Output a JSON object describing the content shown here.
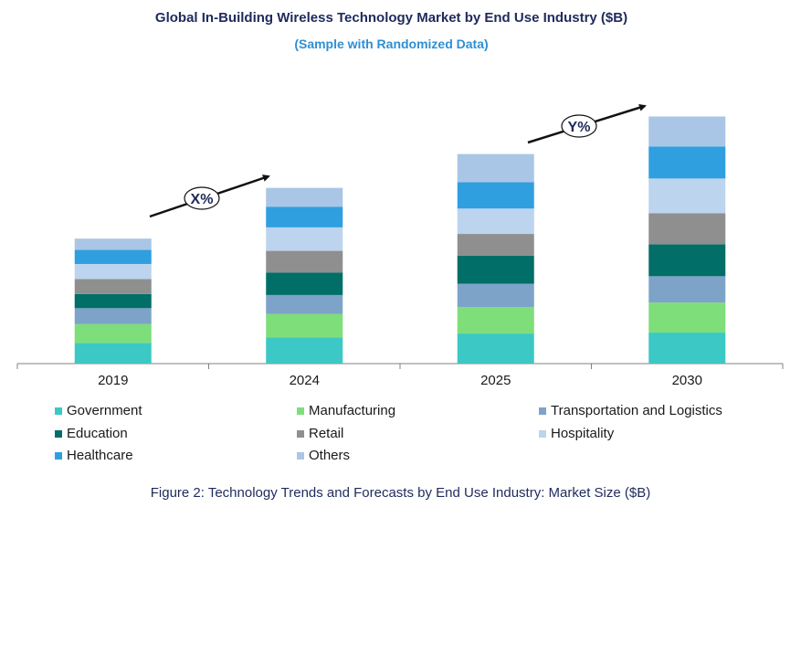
{
  "chart_data": {
    "type": "bar",
    "stacked": true,
    "title": "Global In-Building Wireless Technology Market by End Use Industry ($B)",
    "subtitle": "(Sample with Randomized Data)",
    "categories": [
      "2019",
      "2024",
      "2025",
      "2030"
    ],
    "series": [
      {
        "name": "Government",
        "color": "#3cc8c4",
        "values": [
          2.2,
          2.8,
          3.2,
          3.3
        ]
      },
      {
        "name": "Manufacturing",
        "color": "#7ede7a",
        "values": [
          2.0,
          2.5,
          2.8,
          3.2
        ]
      },
      {
        "name": "Transportation and Logistics",
        "color": "#7ea3c8",
        "values": [
          1.7,
          2.0,
          2.5,
          2.8
        ]
      },
      {
        "name": "Education",
        "color": "#016e67",
        "values": [
          1.5,
          2.4,
          3.0,
          3.4
        ]
      },
      {
        "name": "Retail",
        "color": "#8f8f8f",
        "values": [
          1.6,
          2.3,
          2.3,
          3.3
        ]
      },
      {
        "name": "Hospitality",
        "color": "#bcd4ee",
        "values": [
          1.6,
          2.5,
          2.7,
          3.7
        ]
      },
      {
        "name": "Healthcare",
        "color": "#2f9fe0",
        "values": [
          1.5,
          2.2,
          2.8,
          3.4
        ]
      },
      {
        "name": "Others",
        "color": "#aac6e6",
        "values": [
          1.2,
          2.0,
          3.0,
          3.2
        ]
      }
    ],
    "ylim": [
      0,
      28
    ],
    "xlabel": "",
    "ylabel": "",
    "annotations": [
      {
        "label": "X%",
        "from": "2019",
        "to": "2024"
      },
      {
        "label": "Y%",
        "from": "2025",
        "to": "2030"
      }
    ],
    "legend_position": "bottom",
    "grid": false
  },
  "caption": "Figure 2: Technology Trends and Forecasts by End Use Industry:  Market Size ($B)",
  "colors": {
    "title": "#1f2a5c",
    "subtitle": "#2e8fd4",
    "axis": "#808080"
  }
}
